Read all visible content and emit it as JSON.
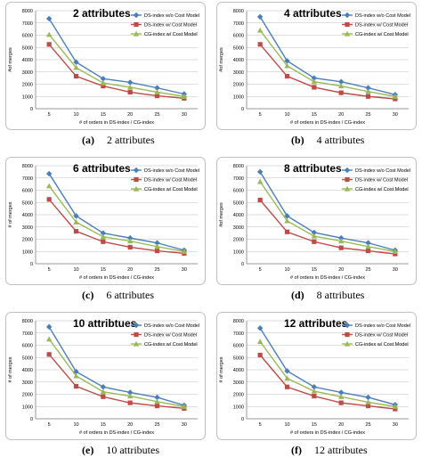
{
  "chart_data": [
    {
      "type": "line",
      "title": "2 attributes",
      "caption_letter": "(a)",
      "caption_text": "2 attributes",
      "xlabel": "# of orders in DS-index / CG-index",
      "ylabel": "#of merges",
      "x": [
        5,
        10,
        15,
        20,
        25,
        30
      ],
      "ylim": [
        0,
        8000
      ],
      "yticks": [
        0,
        1000,
        2000,
        3000,
        4000,
        5000,
        6000,
        7000,
        8000
      ],
      "grid": true,
      "legend": "top-right",
      "series": [
        {
          "name": "DS-index w/o Cost Model",
          "color": "#4a7ebb",
          "marker": "diamond",
          "values": [
            7350,
            3800,
            2450,
            2150,
            1700,
            1200
          ]
        },
        {
          "name": "DS-index w/ Cost Model",
          "color": "#be4b48",
          "marker": "square",
          "values": [
            5250,
            2650,
            1850,
            1350,
            1050,
            850
          ]
        },
        {
          "name": "CG-index w/ Cost Model",
          "color": "#98b954",
          "marker": "triangle",
          "values": [
            6050,
            3350,
            2100,
            1750,
            1350,
            1000
          ]
        }
      ]
    },
    {
      "type": "line",
      "title": "4 attributes",
      "caption_letter": "(b)",
      "caption_text": "4 attributes",
      "xlabel": "# of orders in DS-index / CG-index",
      "ylabel": "#of merges",
      "x": [
        5,
        10,
        15,
        20,
        25,
        30
      ],
      "ylim": [
        0,
        8000
      ],
      "yticks": [
        0,
        1000,
        2000,
        3000,
        4000,
        5000,
        6000,
        7000,
        8000
      ],
      "grid": true,
      "legend": "top-right",
      "series": [
        {
          "name": "DS-index w/o Cost Model",
          "color": "#4a7ebb",
          "marker": "diamond",
          "values": [
            7500,
            3900,
            2500,
            2200,
            1700,
            1150
          ]
        },
        {
          "name": "DS-index w/ Cost Model",
          "color": "#be4b48",
          "marker": "square",
          "values": [
            5250,
            2650,
            1750,
            1300,
            1000,
            800
          ]
        },
        {
          "name": "CG-index w/ Cost Model",
          "color": "#98b954",
          "marker": "triangle",
          "values": [
            6400,
            3500,
            2200,
            1850,
            1400,
            1000
          ]
        }
      ]
    },
    {
      "type": "line",
      "title": "6 attributes",
      "caption_letter": "(c)",
      "caption_text": "6 attributes",
      "xlabel": "# of orders in DS-index / CG-index",
      "ylabel": "# of merges",
      "x": [
        5,
        10,
        15,
        20,
        25,
        30
      ],
      "ylim": [
        0,
        8000
      ],
      "yticks": [
        0,
        1000,
        2000,
        3000,
        4000,
        5000,
        6000,
        7000,
        8000
      ],
      "grid": true,
      "legend": "top-right",
      "series": [
        {
          "name": "DS-index w/o Cost Model",
          "color": "#4a7ebb",
          "marker": "diamond",
          "values": [
            7350,
            3900,
            2500,
            2100,
            1700,
            1100
          ]
        },
        {
          "name": "DS-index w/ Cost Model",
          "color": "#be4b48",
          "marker": "square",
          "values": [
            5250,
            2650,
            1800,
            1350,
            1050,
            850
          ]
        },
        {
          "name": "CG-index w/ Cost Model",
          "color": "#98b954",
          "marker": "triangle",
          "values": [
            6350,
            3400,
            2200,
            1850,
            1400,
            1000
          ]
        }
      ]
    },
    {
      "type": "line",
      "title": "8 attributes",
      "caption_letter": "(d)",
      "caption_text": "8 attributes",
      "xlabel": "# of orders in DS-index / CG-index",
      "ylabel": "#of merges",
      "x": [
        5,
        10,
        15,
        20,
        25,
        30
      ],
      "ylim": [
        0,
        8000
      ],
      "yticks": [
        0,
        1000,
        2000,
        3000,
        4000,
        5000,
        6000,
        7000,
        8000
      ],
      "grid": true,
      "legend": "top-right",
      "series": [
        {
          "name": "DS-index w/o Cost Model",
          "color": "#4a7ebb",
          "marker": "diamond",
          "values": [
            7500,
            3900,
            2550,
            2100,
            1700,
            1100
          ]
        },
        {
          "name": "DS-index w/ Cost Model",
          "color": "#be4b48",
          "marker": "square",
          "values": [
            5200,
            2600,
            1800,
            1300,
            1050,
            800
          ]
        },
        {
          "name": "CG-index w/ Cost Model",
          "color": "#98b954",
          "marker": "triangle",
          "values": [
            6700,
            3500,
            2250,
            1850,
            1400,
            1000
          ]
        }
      ]
    },
    {
      "type": "line",
      "title": "10 attribtues",
      "caption_letter": "(e)",
      "caption_text": "10 attributes",
      "xlabel": "# of orders in DS-index / CG-index",
      "ylabel": "# of merges",
      "x": [
        5,
        10,
        15,
        20,
        25,
        30
      ],
      "ylim": [
        0,
        8000
      ],
      "yticks": [
        0,
        1000,
        2000,
        3000,
        4000,
        5000,
        6000,
        7000,
        8000
      ],
      "grid": true,
      "legend": "top-right",
      "series": [
        {
          "name": "DS-index w/o Cost Model",
          "color": "#4a7ebb",
          "marker": "diamond",
          "values": [
            7500,
            3850,
            2600,
            2150,
            1750,
            1100
          ]
        },
        {
          "name": "DS-index w/ Cost Model",
          "color": "#be4b48",
          "marker": "square",
          "values": [
            5250,
            2650,
            1800,
            1300,
            1050,
            850
          ]
        },
        {
          "name": "CG-index w/ Cost Model",
          "color": "#98b954",
          "marker": "triangle",
          "values": [
            6500,
            3500,
            2200,
            1850,
            1400,
            1000
          ]
        }
      ]
    },
    {
      "type": "line",
      "title": "12 attributes",
      "caption_letter": "(f)",
      "caption_text": "12 attributes",
      "xlabel": "# of orders in DS-index / CG-index",
      "ylabel": "# of merges",
      "x": [
        5,
        10,
        15,
        20,
        25,
        30
      ],
      "ylim": [
        0,
        8000
      ],
      "yticks": [
        0,
        1000,
        2000,
        3000,
        4000,
        5000,
        6000,
        7000,
        8000
      ],
      "grid": true,
      "legend": "top-right",
      "series": [
        {
          "name": "DS-index w/o Cost Model",
          "color": "#4a7ebb",
          "marker": "diamond",
          "values": [
            7400,
            3900,
            2600,
            2150,
            1750,
            1150
          ]
        },
        {
          "name": "DS-index w/ Cost Model",
          "color": "#be4b48",
          "marker": "square",
          "values": [
            5200,
            2600,
            1850,
            1300,
            1050,
            800
          ]
        },
        {
          "name": "CG-index w/ Cost Model",
          "color": "#98b954",
          "marker": "triangle",
          "values": [
            6300,
            3300,
            2250,
            1800,
            1350,
            1000
          ]
        }
      ]
    }
  ]
}
